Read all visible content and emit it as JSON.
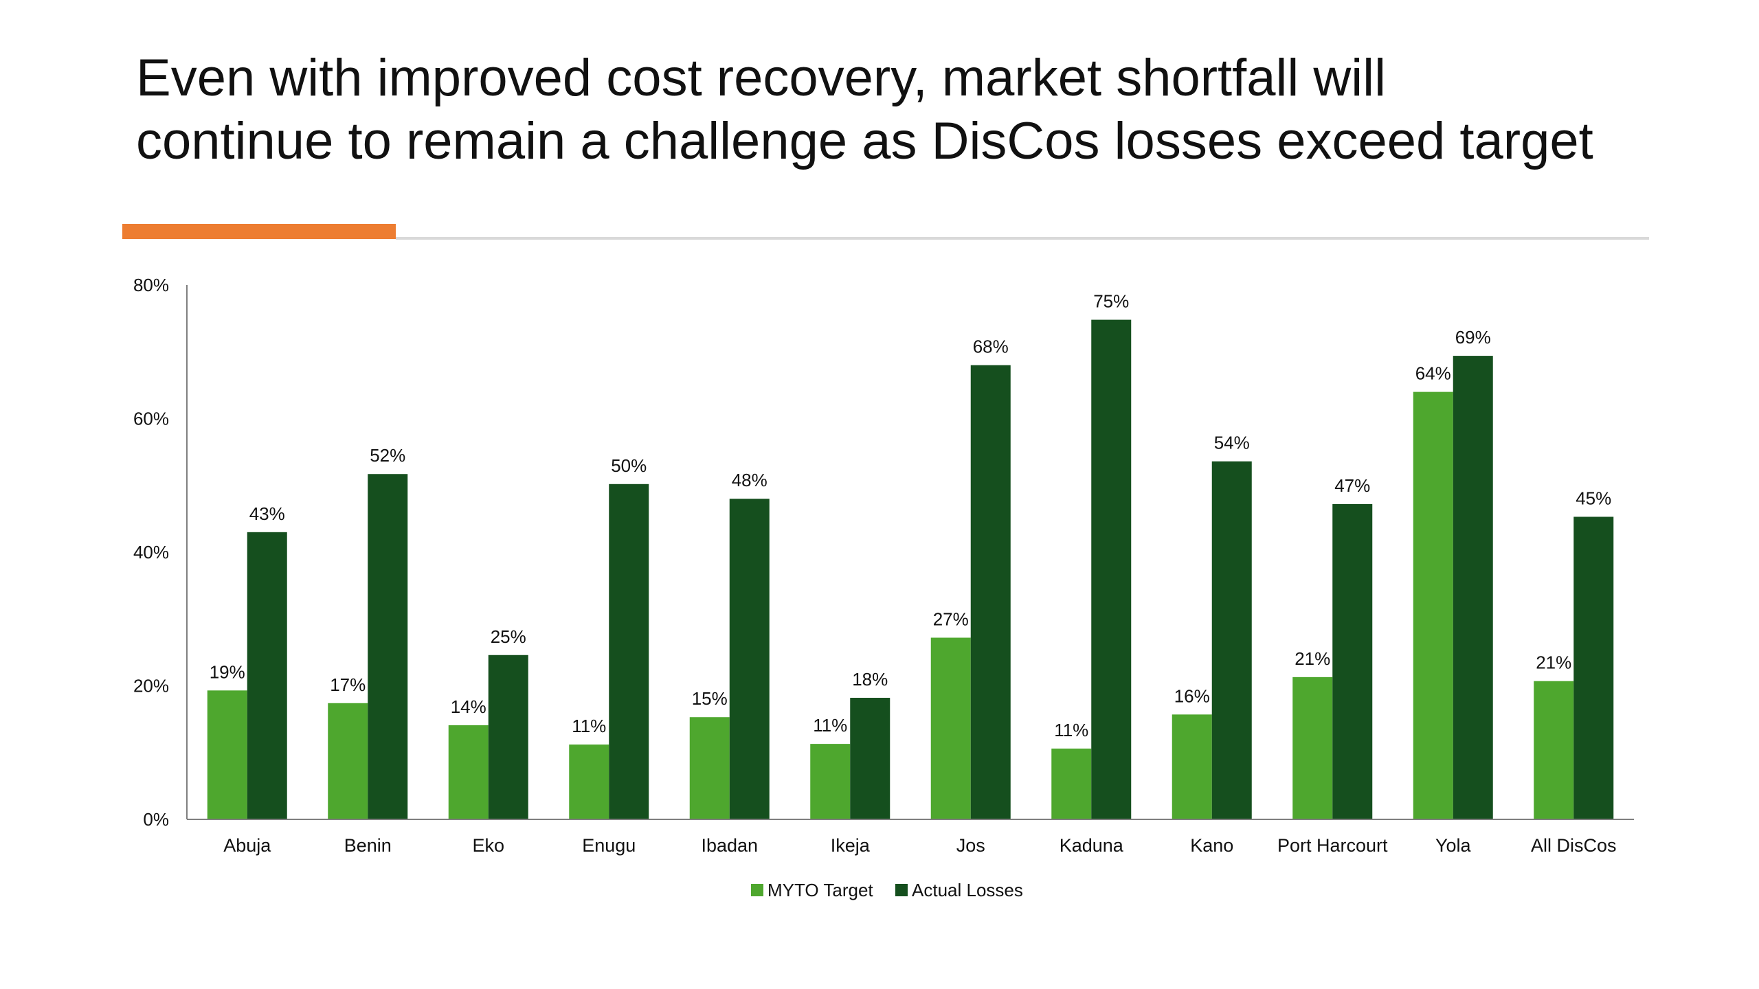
{
  "title_lines": [
    "Even with improved cost recovery, market shortfall will",
    "continue to remain a challenge as DisCos losses exceed target"
  ],
  "colors": {
    "accent": "#ED7D31",
    "divider": "#D9D9D9",
    "myto": "#4EA72E",
    "actual": "#154F1E",
    "axis": "#7F7F7F"
  },
  "chart_data": {
    "type": "bar",
    "categories": [
      "Abuja",
      "Benin",
      "Eko",
      "Enugu",
      "Ibadan",
      "Ikeja",
      "Jos",
      "Kaduna",
      "Kano",
      "Port Harcourt",
      "Yola",
      "All DisCos"
    ],
    "series": [
      {
        "name": "MYTO Target",
        "values": [
          19.3,
          17.4,
          14.1,
          11.2,
          15.3,
          11.3,
          27.2,
          10.6,
          15.7,
          21.3,
          64.0,
          20.7
        ],
        "labels": [
          "19%",
          "17%",
          "14%",
          "11%",
          "15%",
          "11%",
          "27%",
          "11%",
          "16%",
          "21%",
          "64%",
          "21%"
        ]
      },
      {
        "name": "Actual Losses",
        "values": [
          43.0,
          51.7,
          24.6,
          50.2,
          48.0,
          18.2,
          68.0,
          74.8,
          53.6,
          47.2,
          69.4,
          45.3
        ],
        "labels": [
          "43%",
          "52%",
          "25%",
          "50%",
          "48%",
          "18%",
          "68%",
          "75%",
          "54%",
          "47%",
          "69%",
          "45%"
        ]
      }
    ],
    "ylim": [
      0,
      80
    ],
    "yticks": [
      0,
      20,
      40,
      60,
      80
    ],
    "ytick_labels": [
      "0%",
      "20%",
      "40%",
      "60%",
      "80%"
    ],
    "xlabel": "",
    "ylabel": "",
    "grid": false,
    "legend_position": "bottom"
  }
}
